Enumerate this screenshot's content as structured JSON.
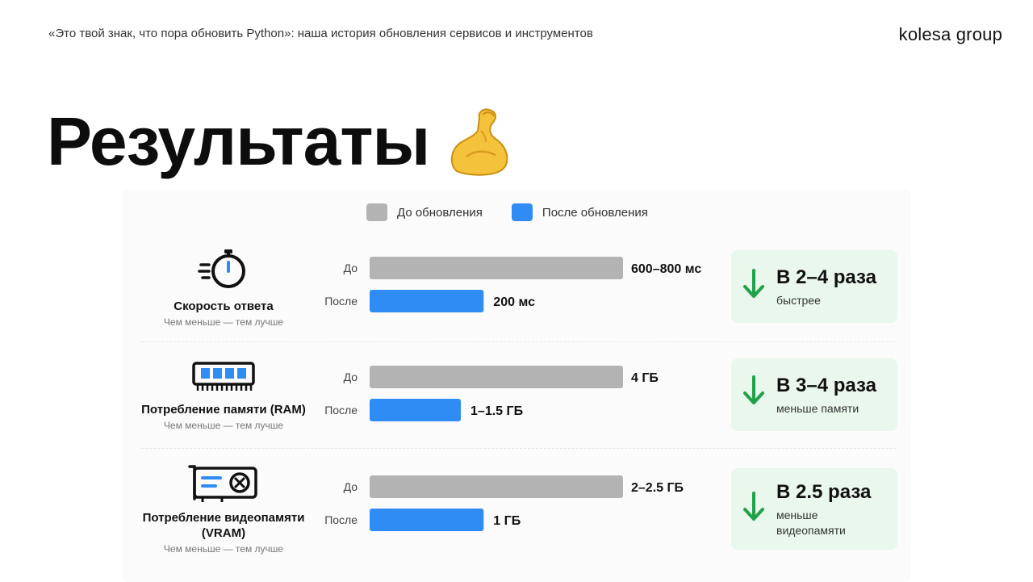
{
  "header": {
    "subtitle": "«Это твой знак, что пора обновить Python»: наша история обновления сервисов и инструментов",
    "brand": "kolesa group"
  },
  "title": "Результаты",
  "title_emoji": "flexed-biceps-icon",
  "colors": {
    "before": "#b3b3b3",
    "after": "#2f8cf5",
    "badge_bg": "#e9f7ec",
    "arrow": "#21a24a"
  },
  "chart_data": {
    "type": "bar",
    "orientation": "horizontal",
    "legend": [
      {
        "name": "До обновления",
        "color": "#b3b3b3"
      },
      {
        "name": "После обновления",
        "color": "#2f8cf5"
      }
    ],
    "rows": [
      {
        "metric": "Скорость ответа",
        "hint": "Чем меньше — тем лучше",
        "icon": "stopwatch-icon",
        "before_label": "До",
        "after_label": "После",
        "before_value_text": "600–800 мс",
        "after_value_text": "200 мс",
        "before_ratio": 1.0,
        "after_ratio": 0.45,
        "result_big": "В 2–4 раза",
        "result_small": "быстрее"
      },
      {
        "metric": "Потребление памяти (RAM)",
        "hint": "Чем меньше — тем лучше",
        "icon": "ram-module-icon",
        "before_label": "До",
        "after_label": "После",
        "before_value_text": "4 ГБ",
        "after_value_text": "1–1.5 ГБ",
        "before_ratio": 1.0,
        "after_ratio": 0.36,
        "result_big": "В 3–4 раза",
        "result_small": "меньше памяти"
      },
      {
        "metric": "Потребление видеопамяти (VRAM)",
        "hint": "Чем меньше — тем лучше",
        "icon": "gpu-card-icon",
        "before_label": "До",
        "after_label": "После",
        "before_value_text": "2–2.5 ГБ",
        "after_value_text": "1 ГБ",
        "before_ratio": 1.0,
        "after_ratio": 0.45,
        "result_big": "В 2.5 раза",
        "result_small": "меньше видеопамяти"
      }
    ]
  }
}
